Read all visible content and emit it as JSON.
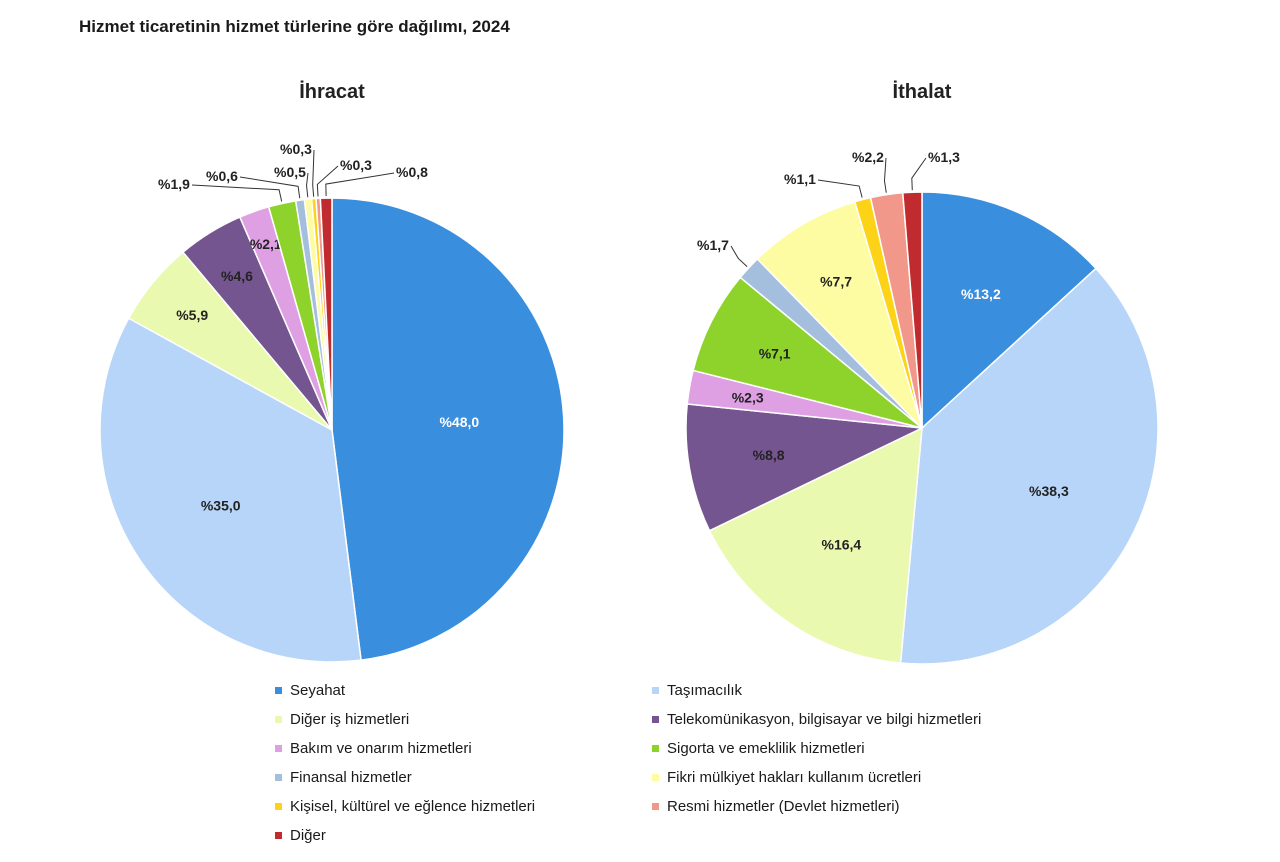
{
  "title": "Hizmet ticaretinin hizmet türlerine göre dağılımı, 2024",
  "colors": {
    "Seyahat": "#3a8ede",
    "Taşımacılık": "#b6d5f8",
    "Diğer iş hizmetleri": "#eaf9b0",
    "Telekomünikasyon, bilgisayar ve bilgi hizmetleri": "#74558f",
    "Bakım ve onarım hizmetleri": "#df9fe3",
    "Sigorta ve emeklilik hizmetleri": "#8ed22c",
    "Finansal hizmetler": "#a4bedd",
    "Fikri mülkiyet hakları kullanım ücretleri": "#fdfca2",
    "Kişisel, kültürel ve eğlence hizmetleri": "#fdd318",
    "Resmi hizmetler (Devlet hizmetleri)": "#f2988a",
    "Diğer": "#c02b30"
  },
  "legend": [
    "Seyahat",
    "Taşımacılık",
    "Diğer iş hizmetleri",
    "Telekomünikasyon, bilgisayar ve bilgi hizmetleri",
    "Bakım ve onarım hizmetleri",
    "Sigorta ve emeklilik hizmetleri",
    "Finansal hizmetler",
    "Fikri mülkiyet hakları kullanım ücretleri",
    "Kişisel, kültürel ve eğlence hizmetleri",
    "Resmi hizmetler (Devlet hizmetleri)",
    "Diğer"
  ],
  "chart_data": [
    {
      "type": "pie",
      "title": "İhracat",
      "categories": [
        "Seyahat",
        "Taşımacılık",
        "Diğer iş hizmetleri",
        "Telekomünikasyon, bilgisayar ve bilgi hizmetleri",
        "Bakım ve onarım hizmetleri",
        "Sigorta ve emeklilik hizmetleri",
        "Finansal hizmetler",
        "Fikri mülkiyet hakları kullanım ücretleri",
        "Kişisel, kültürel ve eğlence hizmetleri",
        "Resmi hizmetler (Devlet hizmetleri)",
        "Diğer"
      ],
      "values": [
        48.0,
        35.0,
        5.9,
        4.6,
        2.1,
        1.9,
        0.6,
        0.5,
        0.3,
        0.3,
        0.8
      ],
      "labels": [
        "%48,0",
        "%35,0",
        "%5,9",
        "%4,6",
        "%2,1",
        "%1,9",
        "%0,6",
        "%0,5",
        "%0,3",
        "%0,3",
        "%0,8"
      ],
      "legend_placement": "bottom"
    },
    {
      "type": "pie",
      "title": "İthalat",
      "categories": [
        "Seyahat",
        "Taşımacılık",
        "Diğer iş hizmetleri",
        "Telekomünikasyon, bilgisayar ve bilgi hizmetleri",
        "Bakım ve onarım hizmetleri",
        "Sigorta ve emeklilik hizmetleri",
        "Finansal hizmetler",
        "Fikri mülkiyet hakları kullanım ücretleri",
        "Kişisel, kültürel ve eğlence hizmetleri",
        "Resmi hizmetler (Devlet hizmetleri)",
        "Diğer"
      ],
      "values": [
        13.2,
        38.3,
        16.4,
        8.8,
        2.3,
        7.1,
        1.7,
        7.7,
        1.1,
        2.2,
        1.3
      ],
      "labels": [
        "%13,2",
        "%38,3",
        "%16,4",
        "%8,8",
        "%2,3",
        "%7,1",
        "%1,7",
        "%7,7",
        "%1,1",
        "%2,2",
        "%1,3"
      ],
      "legend_placement": "bottom"
    }
  ]
}
